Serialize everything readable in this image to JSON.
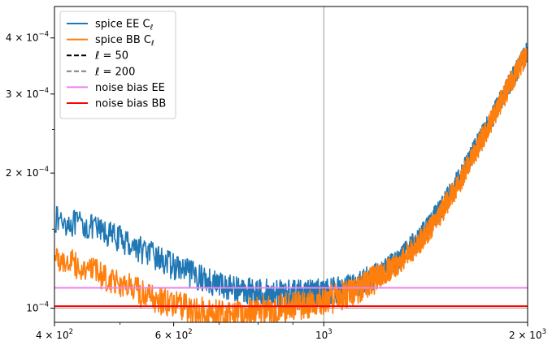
{
  "chart_data": {
    "type": "line",
    "xscale": "log",
    "yscale": "log",
    "xlim": [
      400,
      2000
    ],
    "ylim": [
      9.3e-05,
      0.00047
    ],
    "grid": false,
    "legend_placement": "top-left",
    "x_ticks": [
      {
        "value": 400,
        "base": "4 × 10",
        "exp": "2"
      },
      {
        "value": 600,
        "base": "6 × 10",
        "exp": "2"
      },
      {
        "value": 1000,
        "base": "10",
        "exp": "3"
      },
      {
        "value": 2000,
        "base": "2 × 10",
        "exp": "3"
      }
    ],
    "y_ticks": [
      {
        "value": 0.0001,
        "base": "10",
        "exp": "−4"
      },
      {
        "value": 0.0002,
        "base": "2 × 10",
        "exp": "−4"
      },
      {
        "value": 0.0003,
        "base": "3 × 10",
        "exp": "−4"
      },
      {
        "value": 0.0004,
        "base": "4 × 10",
        "exp": "−4"
      }
    ],
    "series": [
      {
        "name": "spice EE C",
        "subscript": "ℓ",
        "color": "#1f77b4",
        "style": "solid",
        "x": [
          400,
          450,
          500,
          550,
          600,
          650,
          700,
          750,
          800,
          850,
          900,
          950,
          1000,
          1050,
          1100,
          1150,
          1200,
          1300,
          1400,
          1500,
          1600,
          1700,
          1800,
          1900,
          2000
        ],
        "y": [
          0.000158,
          0.000152,
          0.000143,
          0.000133,
          0.000124,
          0.000118,
          0.000113,
          0.00011,
          0.000109,
          0.000108,
          0.000108,
          0.000108,
          0.000109,
          0.00011,
          0.000112,
          0.000115,
          0.000119,
          0.00013,
          0.000147,
          0.00017,
          0.0002,
          0.000237,
          0.00028,
          0.000325,
          0.000375
        ]
      },
      {
        "name": "spice BB C",
        "subscript": "ℓ",
        "color": "#ff7f0e",
        "style": "solid",
        "x": [
          400,
          450,
          500,
          550,
          600,
          650,
          700,
          750,
          800,
          850,
          900,
          950,
          1000,
          1050,
          1100,
          1150,
          1200,
          1300,
          1400,
          1500,
          1600,
          1700,
          1800,
          1900,
          2000
        ],
        "y": [
          0.00013,
          0.000122,
          0.000114,
          0.000106,
          0.000102,
          9.9e-05,
          9.8e-05,
          9.8e-05,
          9.9e-05,
          0.0001,
          0.000101,
          0.000102,
          0.000104,
          0.000106,
          0.000109,
          0.000113,
          0.000117,
          0.000127,
          0.000143,
          0.000166,
          0.000196,
          0.000233,
          0.000277,
          0.000323,
          0.000375
        ]
      },
      {
        "name": "ℓ = 50",
        "color": "#000000",
        "style": "dashed",
        "x": [],
        "y": []
      },
      {
        "name": "ℓ = 200",
        "color": "#7f7f7f",
        "style": "dashed",
        "x": [],
        "y": []
      },
      {
        "name": "noise bias EE",
        "color": "#ee82ee",
        "style": "solid",
        "value": 0.000111
      },
      {
        "name": "noise bias BB",
        "color": "#ff0000",
        "style": "solid",
        "value": 0.000101
      }
    ],
    "reference_lines": [
      {
        "orientation": "vertical",
        "x": 1000,
        "color": "#a9a9a9"
      },
      {
        "orientation": "horizontal",
        "y": 0.0001,
        "color": "#a9a9a9"
      }
    ]
  }
}
